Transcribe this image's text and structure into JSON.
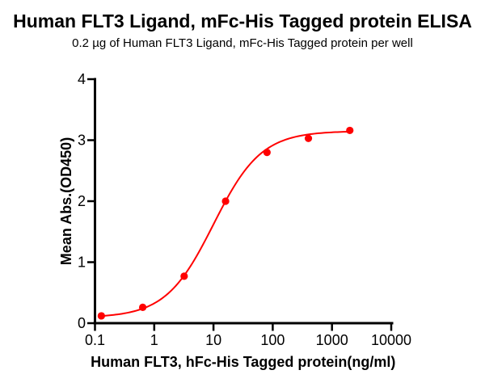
{
  "chart_data": {
    "type": "scatter",
    "title": "Human FLT3 Ligand, mFc-His Tagged protein ELISA",
    "subtitle": "0.2 µg of Human FLT3 Ligand, mFc-His Tagged protein per well",
    "xlabel": "Human FLT3, hFc-His Tagged protein(ng/ml)",
    "ylabel": "Mean Abs.(OD450)",
    "x_scale": "log10",
    "xlim": [
      0.1,
      10000
    ],
    "ylim": [
      0,
      4
    ],
    "x_ticks": [
      0.1,
      1,
      10,
      100,
      1000,
      10000
    ],
    "x_tick_labels": [
      "0.1",
      "1",
      "10",
      "100",
      "1000",
      "10000"
    ],
    "y_ticks": [
      0,
      1,
      2,
      3,
      4
    ],
    "y_tick_labels": [
      "0",
      "1",
      "2",
      "3",
      "4"
    ],
    "grid": false,
    "legend": null,
    "series": [
      {
        "name": "Human FLT3 Ligand, mFc-His Tagged protein",
        "marker": "circle",
        "marker_radius": 4.6,
        "color": "#FF0000",
        "x": [
          0.128,
          0.64,
          3.2,
          16,
          80,
          400,
          2000
        ],
        "y": [
          0.12,
          0.26,
          0.77,
          2.0,
          2.8,
          3.03,
          3.16
        ]
      }
    ],
    "curve_fit": {
      "model": "4PL",
      "bottom": 0.09,
      "top": 3.15,
      "ec50": 10,
      "hill": 1.08,
      "color": "#FF0000",
      "line_width": 2
    }
  },
  "colors": {
    "accent_red": "#FF0000",
    "axis_black": "#000000",
    "background": "#FFFFFF"
  }
}
